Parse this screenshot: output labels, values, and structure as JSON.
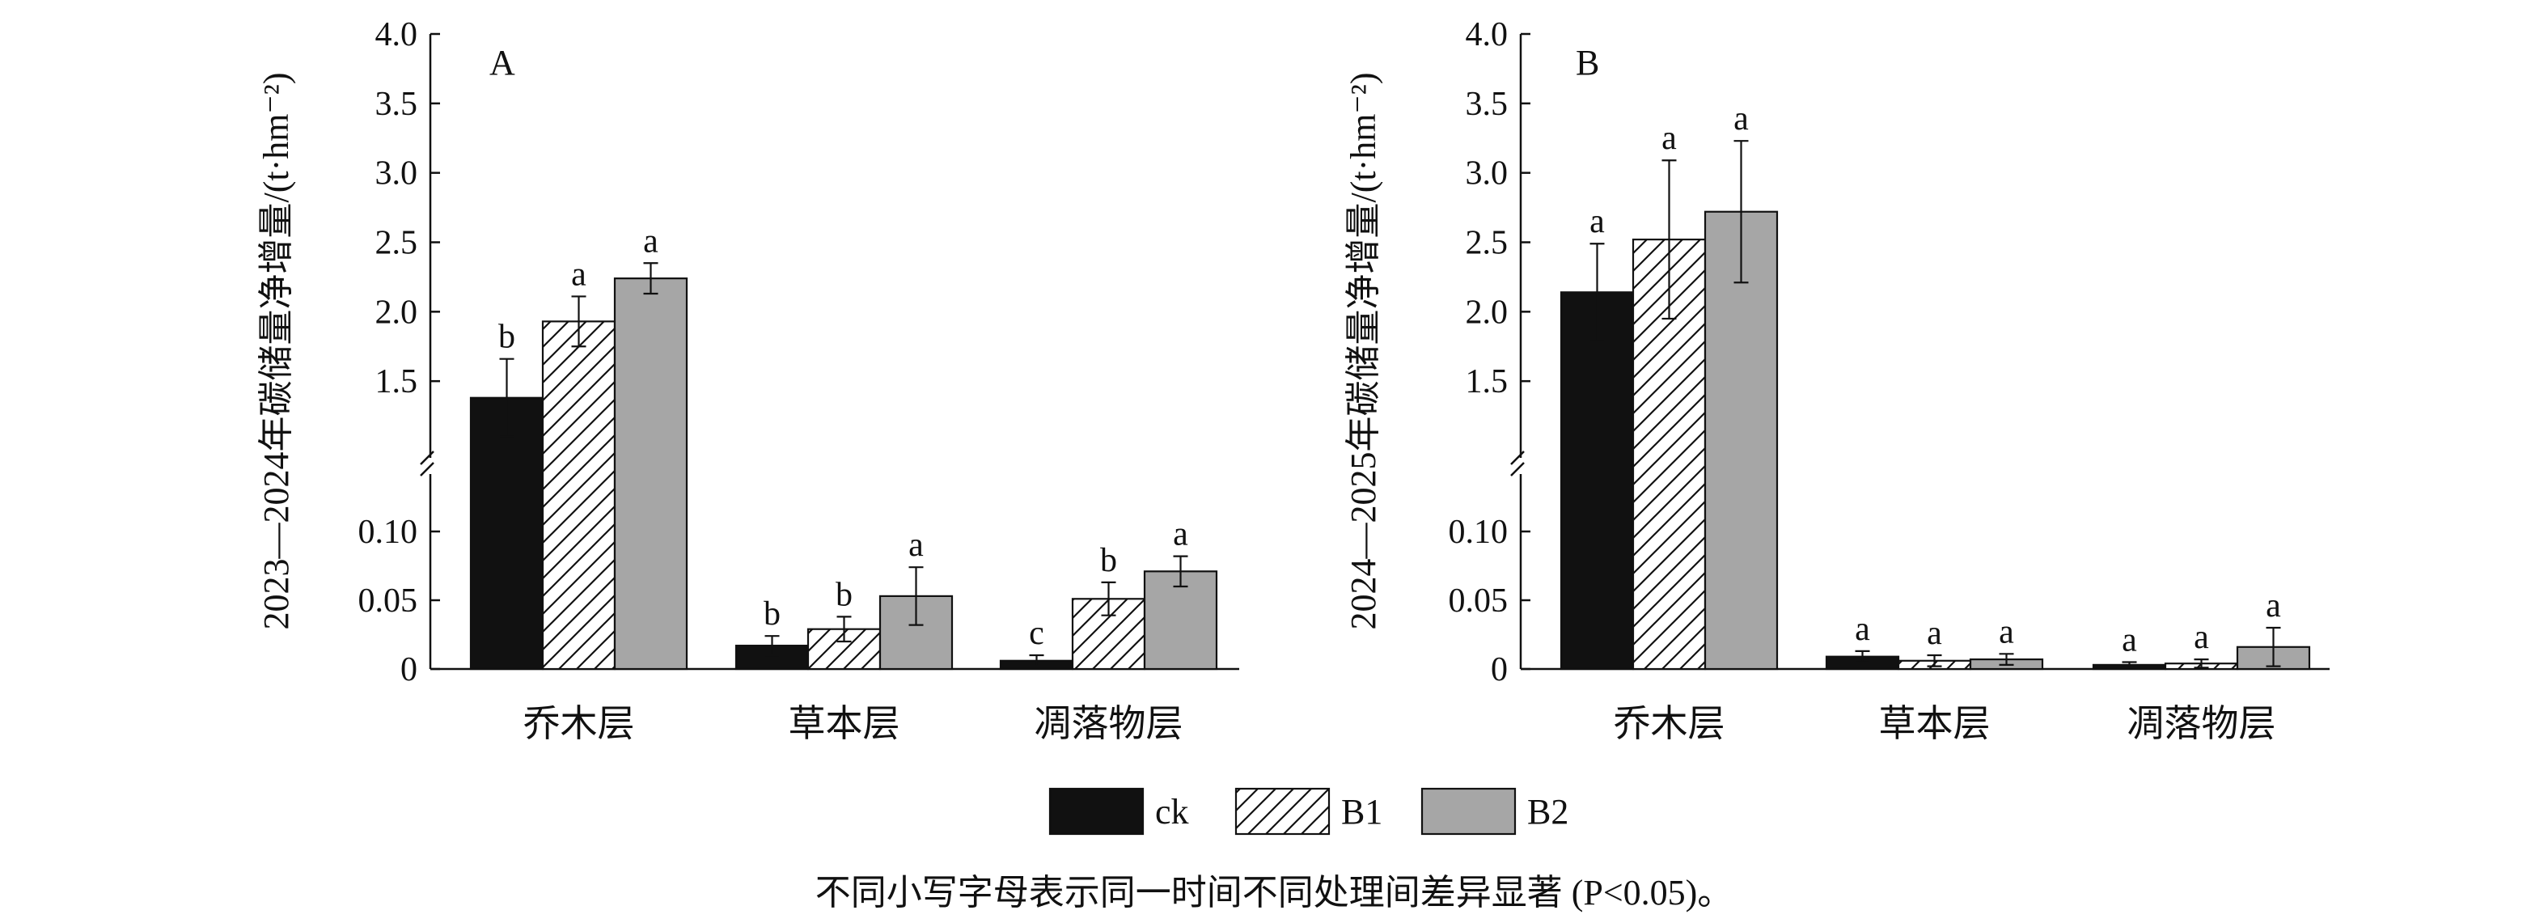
{
  "legend": [
    {
      "label": "ck",
      "color": "#111111",
      "pattern": "solid"
    },
    {
      "label": "B1",
      "color": "#ffffff",
      "pattern": "hatch"
    },
    {
      "label": "B2",
      "color": "#a6a6a6",
      "pattern": "solid"
    }
  ],
  "footnote": "不同小写字母表示同一时间不同处理间差异显著 (P<0.05)。",
  "chart_data": [
    {
      "type": "bar",
      "panel": "A",
      "ylabel": "2023—2024年碳储量净增量/(t·hm⁻²)",
      "categories": [
        "乔木层",
        "草本层",
        "凋落物层"
      ],
      "y_axis": {
        "broken": true,
        "lower_segment": {
          "range": [
            0,
            0.1
          ],
          "ticks": [
            "0",
            "0.05",
            "0.10"
          ]
        },
        "upper_segment": {
          "range": [
            1.0,
            4.0
          ],
          "ticks": [
            "1.5",
            "2.0",
            "2.5",
            "3.0",
            "3.5",
            "4.0"
          ]
        }
      },
      "series": [
        {
          "name": "ck",
          "values": [
            1.38,
            0.017,
            0.006
          ],
          "errors": [
            0.28,
            0.007,
            0.004
          ],
          "letters": [
            "b",
            "b",
            "c"
          ]
        },
        {
          "name": "B1",
          "values": [
            1.93,
            0.029,
            0.051
          ],
          "errors": [
            0.18,
            0.009,
            0.012
          ],
          "letters": [
            "a",
            "b",
            "b"
          ]
        },
        {
          "name": "B2",
          "values": [
            2.24,
            0.053,
            0.071
          ],
          "errors": [
            0.11,
            0.021,
            0.011
          ],
          "letters": [
            "a",
            "a",
            "a"
          ]
        }
      ]
    },
    {
      "type": "bar",
      "panel": "B",
      "ylabel": "2024—2025年碳储量净增量/(t·hm⁻²)",
      "categories": [
        "乔木层",
        "草本层",
        "凋落物层"
      ],
      "y_axis": {
        "broken": true,
        "lower_segment": {
          "range": [
            0,
            0.1
          ],
          "ticks": [
            "0",
            "0.05",
            "0.10"
          ]
        },
        "upper_segment": {
          "range": [
            1.0,
            4.0
          ],
          "ticks": [
            "1.5",
            "2.0",
            "2.5",
            "3.0",
            "3.5",
            "4.0"
          ]
        }
      },
      "series": [
        {
          "name": "ck",
          "values": [
            2.14,
            0.009,
            0.003
          ],
          "errors": [
            0.35,
            0.004,
            0.002
          ],
          "letters": [
            "a",
            "a",
            "a"
          ]
        },
        {
          "name": "B1",
          "values": [
            2.52,
            0.006,
            0.004
          ],
          "errors": [
            0.57,
            0.004,
            0.003
          ],
          "letters": [
            "a",
            "a",
            "a"
          ]
        },
        {
          "name": "B2",
          "values": [
            2.72,
            0.007,
            0.016
          ],
          "errors": [
            0.51,
            0.004,
            0.014
          ],
          "letters": [
            "a",
            "a",
            "a"
          ]
        }
      ]
    }
  ]
}
